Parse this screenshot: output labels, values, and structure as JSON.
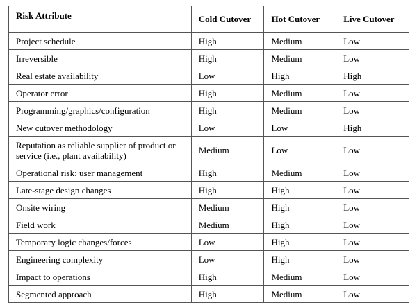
{
  "headers": [
    "Risk Attribute",
    "Cold Cutover",
    "Hot Cutover",
    "Live Cutover"
  ],
  "rows": [
    [
      "Project schedule",
      "High",
      "Medium",
      "Low"
    ],
    [
      "Irreversible",
      "High",
      "Medium",
      "Low"
    ],
    [
      "Real estate availability",
      "Low",
      "High",
      "High"
    ],
    [
      "Operator error",
      "High",
      "Medium",
      "Low"
    ],
    [
      "Programming/graphics/configuration",
      "High",
      "Medium",
      "Low"
    ],
    [
      "New cutover methodology",
      "Low",
      "Low",
      "High"
    ],
    [
      "Reputation as reliable supplier of product or service (i.e., plant availability)",
      "Medium",
      "Low",
      "Low"
    ],
    [
      "Operational risk: user management",
      "High",
      "Medium",
      "Low"
    ],
    [
      "Late-stage design changes",
      "High",
      "High",
      "Low"
    ],
    [
      "Onsite wiring",
      "Medium",
      "High",
      "Low"
    ],
    [
      "Field work",
      "Medium",
      "High",
      "Low"
    ],
    [
      "Temporary logic changes/forces",
      "Low",
      "High",
      "Low"
    ],
    [
      "Engineering complexity",
      "Low",
      "High",
      "Low"
    ],
    [
      "Impact to operations",
      "High",
      "Medium",
      "Low"
    ],
    [
      "Segmented approach",
      "High",
      "Medium",
      "Low"
    ]
  ]
}
